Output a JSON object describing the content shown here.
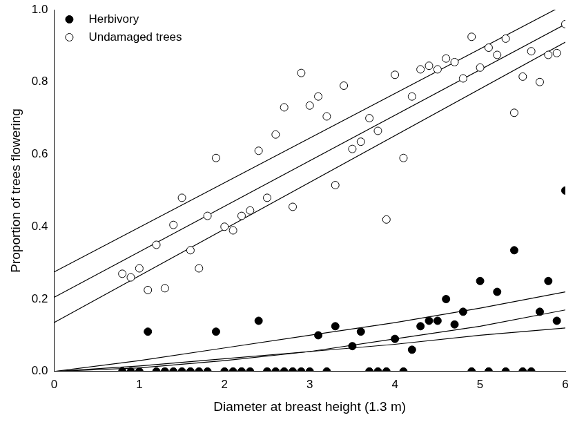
{
  "chart_data": {
    "type": "scatter",
    "x_label": "Diameter at breast height (1.3 m)",
    "y_label": "Proportion of trees flowering",
    "xlim": [
      0,
      6
    ],
    "xticks": [
      0,
      1,
      2,
      3,
      4,
      5,
      6
    ],
    "ylim": [
      0,
      1
    ],
    "yticks": [
      {
        "value": 0,
        "label": "0.0"
      },
      0.2,
      0.4,
      0.6,
      0.8,
      {
        "value": 1,
        "label": "1.0"
      }
    ],
    "grid": false,
    "legend": "upper left",
    "series": [
      {
        "name": "Herbivory",
        "color": "#000000",
        "marker": "circle",
        "x": [
          0.8,
          0.9,
          1.0,
          1.1,
          1.2,
          1.3,
          1.4,
          1.5,
          1.6,
          1.7,
          1.8,
          1.9,
          2.0,
          2.1,
          2.2,
          2.3,
          2.4,
          2.5,
          2.6,
          2.7,
          2.8,
          2.9,
          3.0,
          3.1,
          3.2,
          3.3,
          3.5,
          3.6,
          3.7,
          3.8,
          3.9,
          4.0,
          4.1,
          4.2,
          4.3,
          4.4,
          4.5,
          4.6,
          4.7,
          4.8,
          4.9,
          5.0,
          5.1,
          5.2,
          5.3,
          5.4,
          5.5,
          5.6,
          5.7,
          5.8,
          5.9,
          6.0
        ],
        "values": [
          0,
          0,
          0,
          0.11,
          0,
          0,
          0,
          0,
          0,
          0,
          0,
          0.11,
          0,
          0,
          0,
          0,
          0.14,
          0,
          0,
          0,
          0,
          0,
          0,
          0.1,
          0,
          0.125,
          0.07,
          0.11,
          0,
          0,
          0,
          0.09,
          0,
          0.06,
          0.125,
          0.14,
          0.14,
          0.2,
          0.13,
          0.165,
          0,
          0.25,
          0,
          0.22,
          0,
          0.335,
          0,
          0,
          0.165,
          0.25,
          0.14,
          0.5
        ],
        "fit_lines": [
          {
            "x": [
              0,
              1,
              2,
              3,
              4,
              5,
              6
            ],
            "values": [
              0,
              0.03,
              0.065,
              0.1,
              0.135,
              0.175,
              0.22
            ]
          },
          {
            "x": [
              0,
              1,
              2,
              3,
              4,
              5,
              6
            ],
            "values": [
              0,
              0.01,
              0.03,
              0.055,
              0.09,
              0.125,
              0.17
            ]
          },
          {
            "x": [
              0,
              1,
              2,
              3,
              4,
              5,
              6
            ],
            "values": [
              0,
              0.015,
              0.035,
              0.055,
              0.075,
              0.1,
              0.12
            ]
          }
        ]
      },
      {
        "name": "Undamaged trees",
        "color": "#000000",
        "marker": "open_circle",
        "x": [
          0.8,
          0.9,
          1.0,
          1.1,
          1.2,
          1.3,
          1.4,
          1.5,
          1.6,
          1.7,
          1.8,
          1.9,
          2.0,
          2.1,
          2.2,
          2.3,
          2.4,
          2.5,
          2.6,
          2.7,
          2.8,
          2.9,
          3.0,
          3.1,
          3.2,
          3.3,
          3.4,
          3.5,
          3.6,
          3.7,
          3.8,
          3.9,
          4.0,
          4.1,
          4.2,
          4.3,
          4.4,
          4.5,
          4.6,
          4.7,
          4.8,
          4.9,
          5.0,
          5.1,
          5.2,
          5.3,
          5.4,
          5.5,
          5.6,
          5.7,
          5.8,
          5.9,
          6.0
        ],
        "values": [
          0.27,
          0.26,
          0.285,
          0.225,
          0.35,
          0.23,
          0.405,
          0.48,
          0.335,
          0.285,
          0.43,
          0.59,
          0.4,
          0.39,
          0.43,
          0.445,
          0.61,
          0.48,
          0.655,
          0.73,
          0.455,
          0.825,
          0.735,
          0.76,
          0.705,
          0.515,
          0.79,
          0.615,
          0.635,
          0.7,
          0.665,
          0.42,
          0.82,
          0.59,
          0.76,
          0.835,
          0.845,
          0.835,
          0.865,
          0.855,
          0.81,
          0.925,
          0.84,
          0.895,
          0.875,
          0.92,
          0.715,
          0.815,
          0.885,
          0.8,
          0.875,
          0.88,
          0.96
        ],
        "fit_lines": [
          {
            "x": [
              0,
              6
            ],
            "values": [
              0.275,
              1.015
            ]
          },
          {
            "x": [
              0,
              6
            ],
            "values": [
              0.205,
              0.96
            ]
          },
          {
            "x": [
              0,
              6
            ],
            "values": [
              0.135,
              0.91
            ]
          }
        ]
      }
    ]
  }
}
